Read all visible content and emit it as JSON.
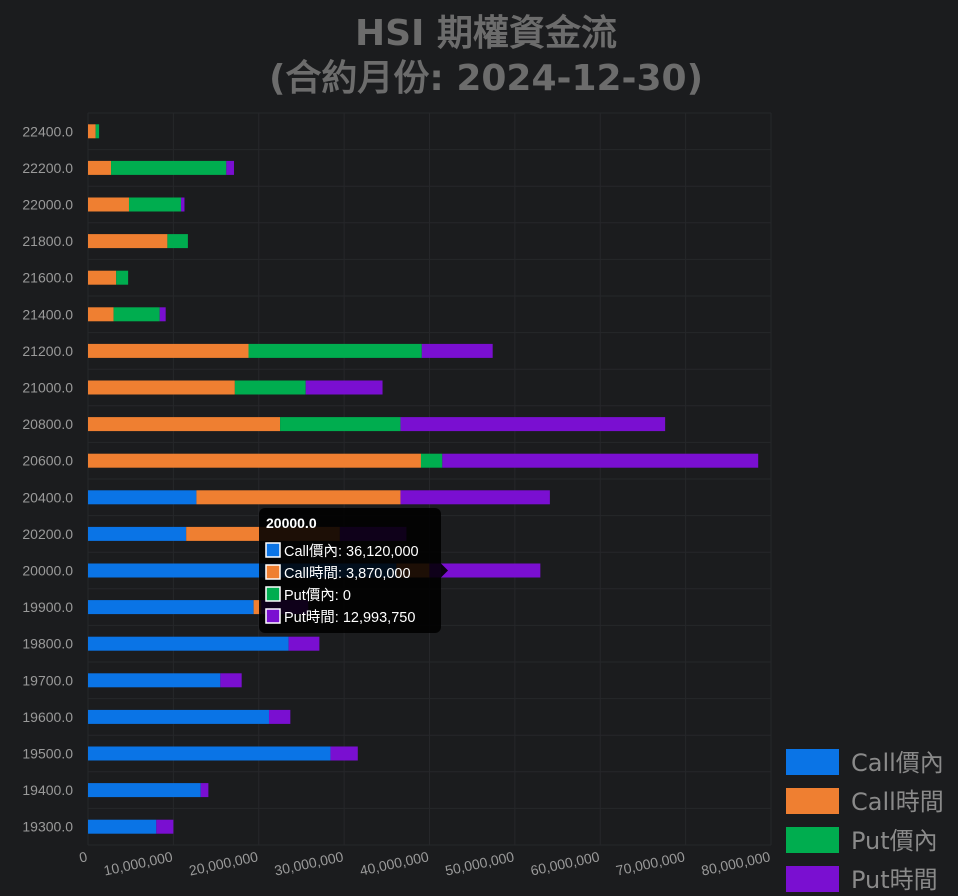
{
  "title": {
    "line1": "HSI 期權資金流",
    "line2": "(合約月份: 2024-12-30)"
  },
  "colors": {
    "background": "#1b1c1e",
    "call_itm": "#0a74e6",
    "call_time": "#ef7f31",
    "put_itm": "#00ad4f",
    "put_time": "#7a0fd1"
  },
  "chart_data": {
    "type": "bar",
    "orientation": "horizontal",
    "stacked": true,
    "categories": [
      "22400.0",
      "22200.0",
      "22000.0",
      "21800.0",
      "21600.0",
      "21400.0",
      "21200.0",
      "21000.0",
      "20800.0",
      "20600.0",
      "20400.0",
      "20200.0",
      "20000.0",
      "19900.0",
      "19800.0",
      "19700.0",
      "19600.0",
      "19500.0",
      "19400.0",
      "19300.0"
    ],
    "series": [
      {
        "name": "Call價內",
        "color": "#0a74e6",
        "values": [
          0,
          0,
          0,
          0,
          0,
          0,
          0,
          0,
          0,
          0,
          12700000,
          11500000,
          36120000,
          19400000,
          23500000,
          15500000,
          21200000,
          28400000,
          13200000,
          8000000
        ]
      },
      {
        "name": "Call時間",
        "color": "#ef7f31",
        "values": [
          900000,
          2700000,
          4800000,
          9300000,
          3300000,
          3000000,
          18800000,
          17200000,
          22500000,
          39000000,
          23900000,
          18000000,
          3870000,
          900000,
          0,
          0,
          0,
          0,
          0,
          0
        ]
      },
      {
        "name": "Put價內",
        "color": "#00ad4f",
        "values": [
          400000,
          13500000,
          6100000,
          2400000,
          1400000,
          5400000,
          20300000,
          8300000,
          14100000,
          2500000,
          0,
          0,
          0,
          0,
          0,
          0,
          0,
          0,
          0,
          0
        ]
      },
      {
        "name": "Put時間",
        "color": "#7a0fd1",
        "values": [
          0,
          900000,
          400000,
          0,
          0,
          700000,
          8300000,
          9000000,
          31000000,
          37000000,
          17500000,
          7800000,
          12993750,
          5500000,
          3600000,
          2500000,
          2500000,
          3200000,
          900000,
          2000000
        ]
      }
    ],
    "xlim": [
      0,
      80000000
    ],
    "xticks": [
      "0",
      "10,000,000",
      "20,000,000",
      "30,000,000",
      "40,000,000",
      "50,000,000",
      "60,000,000",
      "70,000,000",
      "80,000,000"
    ],
    "grid": true,
    "legend_position": "bottom-right",
    "tooltip": {
      "category": "20000.0",
      "title": "20000.0",
      "rows": [
        {
          "label": "Call價內: 36,120,000",
          "color": "#0a74e6"
        },
        {
          "label": "Call時間: 3,870,000",
          "color": "#ef7f31"
        },
        {
          "label": "Put價內: 0",
          "color": "#00ad4f"
        },
        {
          "label": "Put時間: 12,993,750",
          "color": "#7a0fd1"
        }
      ]
    }
  }
}
